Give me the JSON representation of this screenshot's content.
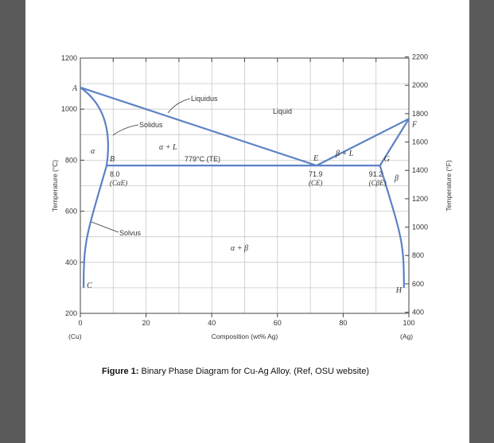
{
  "chart_data": {
    "type": "phase-diagram",
    "xlabel": "Composition (wt% Ag)",
    "ylabel_left": "Temperature (°C)",
    "ylabel_right": "Temperature (°F)",
    "xlim": [
      0,
      100
    ],
    "ylim_C": [
      200,
      1200
    ],
    "ylim_F": [
      400,
      2200
    ],
    "x_ticks": [
      "0",
      "20",
      "40",
      "60",
      "80",
      "100"
    ],
    "y_ticks_C": [
      "200",
      "400",
      "600",
      "800",
      "1000",
      "1200"
    ],
    "y_ticks_F": [
      "400",
      "600",
      "800",
      "1000",
      "1200",
      "1400",
      "1600",
      "1800",
      "2000",
      "2200"
    ],
    "x_end_labels": {
      "left": "(Cu)",
      "right": "(Ag)"
    },
    "grid": true,
    "lines": [
      {
        "name": "Liquidus",
        "points": [
          [
            0,
            1085
          ],
          [
            71.9,
            779
          ],
          [
            100,
            962
          ]
        ]
      },
      {
        "name": "Solidus",
        "points": [
          [
            0,
            1085
          ],
          [
            8.0,
            779
          ]
        ]
      },
      {
        "name": "Solidus",
        "points": [
          [
            100,
            962
          ],
          [
            91.2,
            779
          ]
        ]
      },
      {
        "name": "eutectic isotherm",
        "points": [
          [
            8.0,
            779
          ],
          [
            91.2,
            779
          ]
        ]
      },
      {
        "name": "Solvus",
        "points": [
          [
            8.0,
            779
          ],
          [
            1.0,
            300
          ]
        ]
      },
      {
        "name": "Solvus",
        "points": [
          [
            91.2,
            779
          ],
          [
            98.5,
            300
          ]
        ]
      }
    ],
    "points": [
      {
        "label": "A",
        "x": 0,
        "y": 1085
      },
      {
        "label": "B",
        "x": 8.0,
        "y": 779
      },
      {
        "label": "C",
        "x": 1.0,
        "y": 300
      },
      {
        "label": "E",
        "x": 71.9,
        "y": 779
      },
      {
        "label": "F",
        "x": 100,
        "y": 962
      },
      {
        "label": "G",
        "x": 91.2,
        "y": 779
      },
      {
        "label": "H",
        "x": 98.5,
        "y": 300
      }
    ],
    "composition_labels": [
      {
        "value": "8.0",
        "sub": "(CαE)"
      },
      {
        "value": "71.9",
        "sub": "(CE)"
      },
      {
        "value": "91.2",
        "sub": "(CβE)"
      }
    ],
    "annotations": {
      "liquidus": "Liquidus",
      "solidus": "Solidus",
      "solvus": "Solvus",
      "liquid": "Liquid",
      "alpha": "α",
      "beta": "β",
      "alpha_plus_L": "α + L",
      "beta_plus_L": "β + L",
      "alpha_plus_beta": "α + β",
      "eutectic_temp": "779°C (TE)"
    },
    "line_color": "#5b82c4"
  },
  "caption": {
    "label": "Figure 1:",
    "text": " Binary Phase Diagram for Cu-Ag Alloy.  (Ref, OSU website)"
  }
}
